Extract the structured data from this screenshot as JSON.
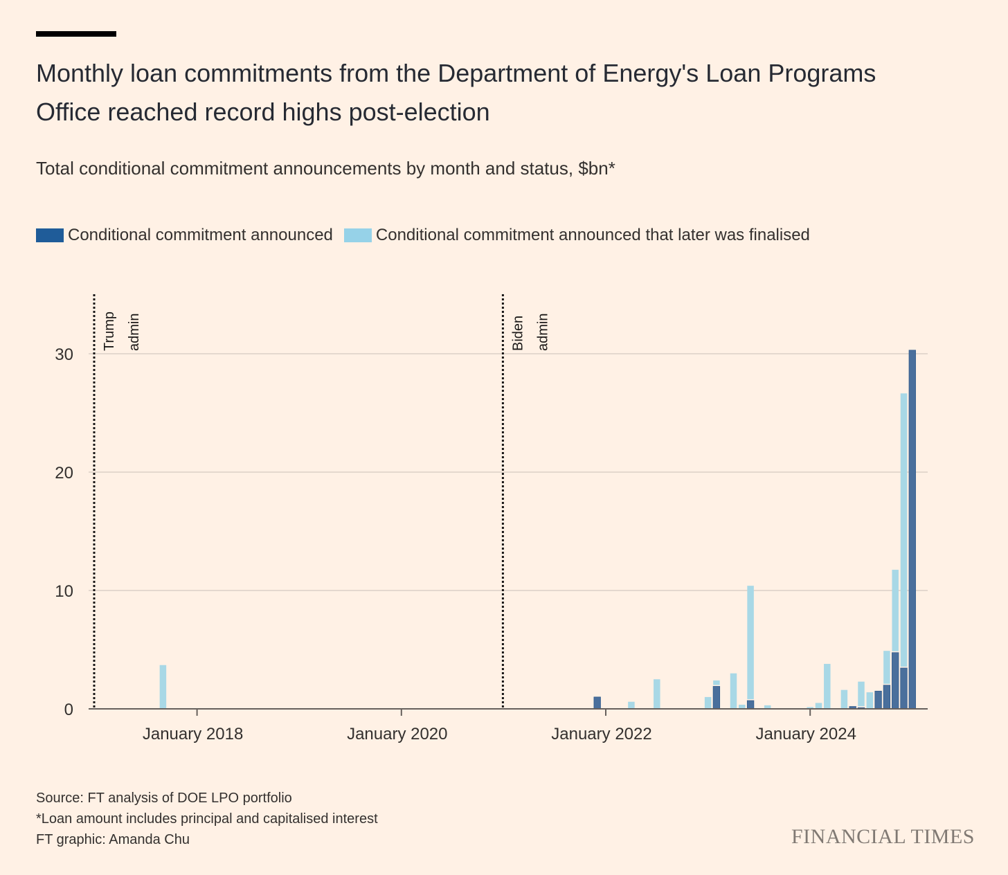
{
  "title": "Monthly loan commitments from the Department of Energy's Loan Programs Office reached record highs post-election",
  "subtitle": "Total conditional commitment announcements by month and status, $bn*",
  "footer": {
    "source": "Source: FT analysis of DOE LPO portfolio",
    "note": "*Loan amount includes principal and capitalised interest",
    "credit": "FT graphic: Amanda Chu"
  },
  "logo": "FINANCIAL TIMES",
  "chart_data": {
    "type": "bar",
    "stacked": true,
    "title": "Monthly loan commitments from the Department of Energy's Loan Programs Office reached record highs post-election",
    "ylabel": "$bn",
    "ylim": [
      0,
      35
    ],
    "yticks": [
      0,
      10,
      20,
      30
    ],
    "xlim": [
      "2016-12",
      "2025-02"
    ],
    "xticks": [
      {
        "month": "2018-01",
        "label": "January 2018"
      },
      {
        "month": "2020-01",
        "label": "January 2020"
      },
      {
        "month": "2022-01",
        "label": "January 2022"
      },
      {
        "month": "2024-01",
        "label": "January 2024"
      }
    ],
    "grid": true,
    "legend_position": "top-left",
    "series": [
      {
        "key": "announced",
        "name": "Conditional commitment announced",
        "color": "#4a6f9c"
      },
      {
        "key": "finalised",
        "name": "Conditional commitment announced that later was finalised",
        "color": "#a8d8e6"
      }
    ],
    "legend_colors": {
      "announced": "#1f5c99",
      "finalised": "#96d2e8"
    },
    "annotations": [
      {
        "month": "2017-01",
        "lines": [
          "Trump",
          "admin"
        ]
      },
      {
        "month": "2021-01",
        "lines": [
          "Biden",
          "admin"
        ]
      }
    ],
    "bars": [
      {
        "month": "2017-09",
        "announced": 0,
        "finalised": 3.7
      },
      {
        "month": "2021-12",
        "announced": 1.0,
        "finalised": 0
      },
      {
        "month": "2022-04",
        "announced": 0,
        "finalised": 0.6
      },
      {
        "month": "2022-07",
        "announced": 0,
        "finalised": 2.5
      },
      {
        "month": "2023-01",
        "announced": 0,
        "finalised": 1.0
      },
      {
        "month": "2023-02",
        "announced": 1.9,
        "finalised": 0.5
      },
      {
        "month": "2023-04",
        "announced": 0,
        "finalised": 3.0
      },
      {
        "month": "2023-05",
        "announced": 0,
        "finalised": 0.35
      },
      {
        "month": "2023-06",
        "announced": 0.7,
        "finalised": 9.7
      },
      {
        "month": "2023-08",
        "announced": 0,
        "finalised": 0.3
      },
      {
        "month": "2024-01",
        "announced": 0,
        "finalised": 0.15
      },
      {
        "month": "2024-02",
        "announced": 0,
        "finalised": 0.5
      },
      {
        "month": "2024-03",
        "announced": 0,
        "finalised": 3.8
      },
      {
        "month": "2024-05",
        "announced": 0,
        "finalised": 1.6
      },
      {
        "month": "2024-06",
        "announced": 0.2,
        "finalised": 0
      },
      {
        "month": "2024-07",
        "announced": 0.1,
        "finalised": 2.2
      },
      {
        "month": "2024-08",
        "announced": 0,
        "finalised": 1.4
      },
      {
        "month": "2024-09",
        "announced": 1.5,
        "finalised": 0
      },
      {
        "month": "2024-10",
        "announced": 2.0,
        "finalised": 2.9
      },
      {
        "month": "2024-11",
        "announced": 4.75,
        "finalised": 7.0
      },
      {
        "month": "2024-12",
        "announced": 3.45,
        "finalised": 23.2
      },
      {
        "month": "2025-01",
        "announced": 30.3,
        "finalised": 0
      }
    ]
  }
}
